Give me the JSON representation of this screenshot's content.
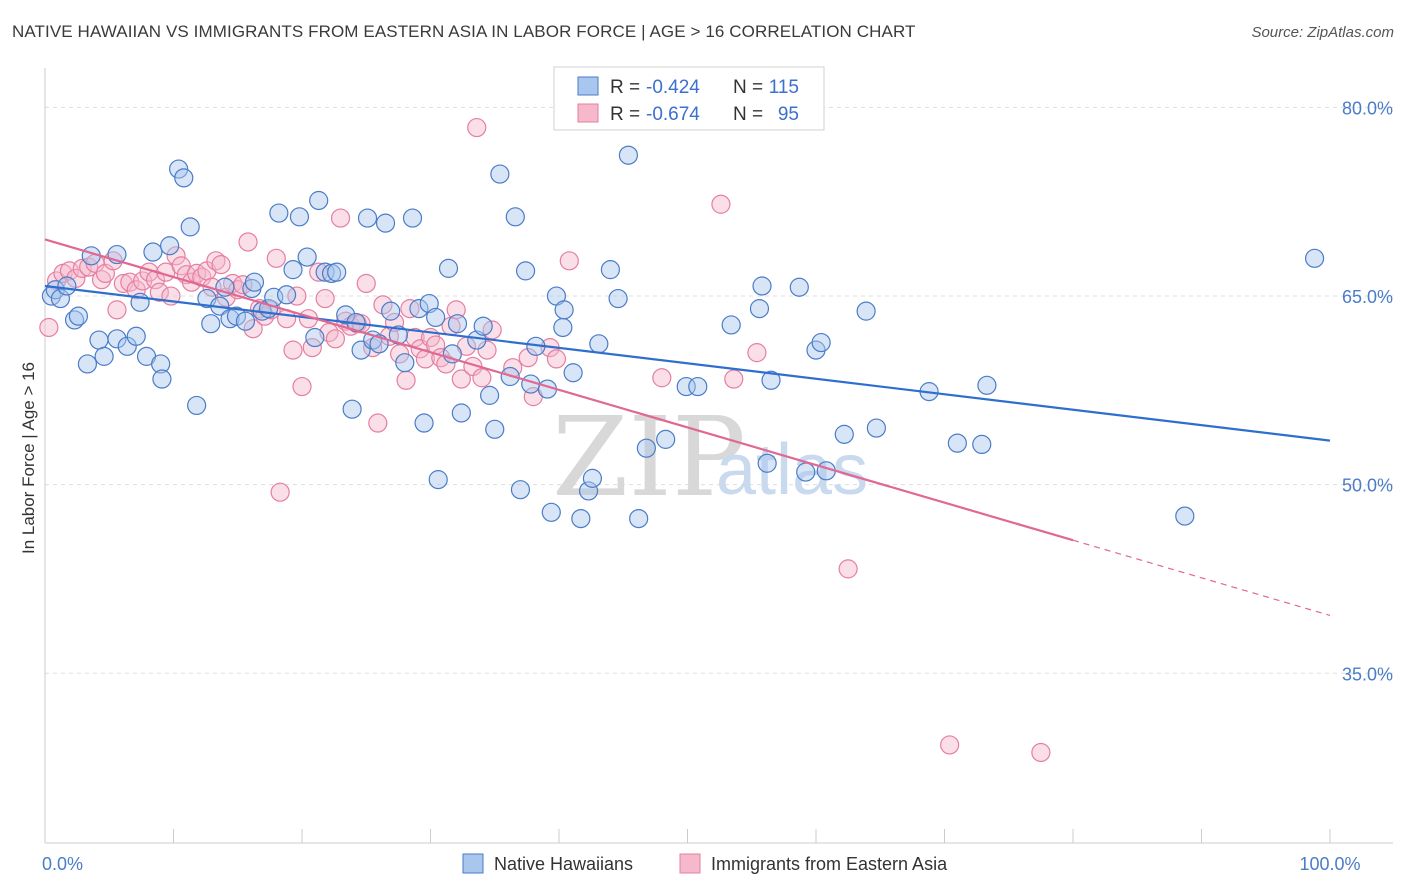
{
  "header": {
    "title": "NATIVE HAWAIIAN VS IMMIGRANTS FROM EASTERN ASIA IN LABOR FORCE | AGE > 16 CORRELATION CHART",
    "source": "Source: ZipAtlas.com"
  },
  "watermark": {
    "zip": "ZIP",
    "atlas": "atlas"
  },
  "colors": {
    "blue": "#4a7cc7",
    "blue_fill": "#a9c6ee",
    "blue_line": "#2e6fce",
    "pink": "#e57fa0",
    "pink_fill": "#f5b9cb",
    "pink_line": "#e06892"
  },
  "stats_box": {
    "rows": [
      {
        "r_label": "R =",
        "r_value": "-0.424",
        "n_label": "N =",
        "n_value": "115"
      },
      {
        "r_label": "R =",
        "r_value": "-0.674",
        "n_label": "N =",
        "n_value": "95"
      }
    ]
  },
  "chart_data": {
    "type": "scatter",
    "title": "NATIVE HAWAIIAN VS IMMIGRANTS FROM EASTERN ASIA IN LABOR FORCE | AGE > 16 CORRELATION CHART",
    "xlabel": "",
    "ylabel": "In Labor Force | Age > 16",
    "xlim": [
      0,
      100
    ],
    "ylim": [
      21.5,
      82.5
    ],
    "x_tick_labels": [
      {
        "value": 0,
        "label": "0.0%"
      },
      {
        "value": 100,
        "label": "100.0%"
      }
    ],
    "y_tick_labels": [
      {
        "value": 80,
        "label": "80.0%"
      },
      {
        "value": 65,
        "label": "65.0%"
      },
      {
        "value": 50,
        "label": "50.0%"
      },
      {
        "value": 35,
        "label": "35.0%"
      }
    ],
    "grid": true,
    "legend_position": "bottom-center",
    "series": [
      {
        "name": "Native Hawaiians",
        "color": "#4a7cc7",
        "trend": {
          "x": [
            0,
            100
          ],
          "y": [
            65.8,
            53.5
          ],
          "dashed_from": null
        },
        "points": [
          [
            0.5,
            65.0
          ],
          [
            0.8,
            65.5
          ],
          [
            1.2,
            64.8
          ],
          [
            1.7,
            65.8
          ],
          [
            2.3,
            63.1
          ],
          [
            2.6,
            63.4
          ],
          [
            3.3,
            59.6
          ],
          [
            3.6,
            68.2
          ],
          [
            4.2,
            61.5
          ],
          [
            4.6,
            60.2
          ],
          [
            5.6,
            61.6
          ],
          [
            5.6,
            68.3
          ],
          [
            6.4,
            61.0
          ],
          [
            7.1,
            61.8
          ],
          [
            7.4,
            64.5
          ],
          [
            7.9,
            60.2
          ],
          [
            8.4,
            68.5
          ],
          [
            9.0,
            59.6
          ],
          [
            9.1,
            58.4
          ],
          [
            9.7,
            69.0
          ],
          [
            10.4,
            75.1
          ],
          [
            10.8,
            74.4
          ],
          [
            11.3,
            70.5
          ],
          [
            11.8,
            56.3
          ],
          [
            12.6,
            64.8
          ],
          [
            12.9,
            62.8
          ],
          [
            13.6,
            64.2
          ],
          [
            14.0,
            65.7
          ],
          [
            14.4,
            63.2
          ],
          [
            14.9,
            63.4
          ],
          [
            15.6,
            63.0
          ],
          [
            16.1,
            65.6
          ],
          [
            16.3,
            66.1
          ],
          [
            16.9,
            63.8
          ],
          [
            17.4,
            64.0
          ],
          [
            17.8,
            64.9
          ],
          [
            18.2,
            71.6
          ],
          [
            18.8,
            65.1
          ],
          [
            19.3,
            67.1
          ],
          [
            19.8,
            71.3
          ],
          [
            20.4,
            68.1
          ],
          [
            21.0,
            61.7
          ],
          [
            21.3,
            72.6
          ],
          [
            21.8,
            66.9
          ],
          [
            22.3,
            66.8
          ],
          [
            22.7,
            66.9
          ],
          [
            23.4,
            63.5
          ],
          [
            23.9,
            56.0
          ],
          [
            24.2,
            62.9
          ],
          [
            24.6,
            60.7
          ],
          [
            25.1,
            71.2
          ],
          [
            25.5,
            61.5
          ],
          [
            26.0,
            61.2
          ],
          [
            26.5,
            70.8
          ],
          [
            26.9,
            63.8
          ],
          [
            27.5,
            61.9
          ],
          [
            28.0,
            59.7
          ],
          [
            28.6,
            71.2
          ],
          [
            29.1,
            64.0
          ],
          [
            29.5,
            54.9
          ],
          [
            29.9,
            64.4
          ],
          [
            30.4,
            63.3
          ],
          [
            30.6,
            50.4
          ],
          [
            31.4,
            67.2
          ],
          [
            31.7,
            60.4
          ],
          [
            32.1,
            62.8
          ],
          [
            32.4,
            55.7
          ],
          [
            33.6,
            61.5
          ],
          [
            34.1,
            62.6
          ],
          [
            34.6,
            57.1
          ],
          [
            35.0,
            54.4
          ],
          [
            35.4,
            74.7
          ],
          [
            36.2,
            58.6
          ],
          [
            36.6,
            71.3
          ],
          [
            37.0,
            49.6
          ],
          [
            37.4,
            67.0
          ],
          [
            37.8,
            58.0
          ],
          [
            38.2,
            61.0
          ],
          [
            39.1,
            57.6
          ],
          [
            39.4,
            47.8
          ],
          [
            39.8,
            65.0
          ],
          [
            40.3,
            62.5
          ],
          [
            40.4,
            63.9
          ],
          [
            41.1,
            58.9
          ],
          [
            41.7,
            47.3
          ],
          [
            42.3,
            49.5
          ],
          [
            42.6,
            50.5
          ],
          [
            43.1,
            61.2
          ],
          [
            44.0,
            67.1
          ],
          [
            44.6,
            64.8
          ],
          [
            45.4,
            76.2
          ],
          [
            46.2,
            47.3
          ],
          [
            46.8,
            52.9
          ],
          [
            48.3,
            53.6
          ],
          [
            49.9,
            57.8
          ],
          [
            50.8,
            57.8
          ],
          [
            53.4,
            62.7
          ],
          [
            55.6,
            64.0
          ],
          [
            55.8,
            65.8
          ],
          [
            56.2,
            51.7
          ],
          [
            56.5,
            58.3
          ],
          [
            58.7,
            65.7
          ],
          [
            59.2,
            51.0
          ],
          [
            60.0,
            60.7
          ],
          [
            60.4,
            61.3
          ],
          [
            60.8,
            51.1
          ],
          [
            62.2,
            54.0
          ],
          [
            63.9,
            63.8
          ],
          [
            64.7,
            54.5
          ],
          [
            68.8,
            57.4
          ],
          [
            71.0,
            53.3
          ],
          [
            72.9,
            53.2
          ],
          [
            73.3,
            57.9
          ],
          [
            88.7,
            47.5
          ],
          [
            98.8,
            68.0
          ]
        ]
      },
      {
        "name": "Immigrants from Eastern Asia",
        "color": "#e57fa0",
        "trend": {
          "x": [
            0,
            100
          ],
          "y": [
            69.5,
            39.6
          ],
          "dashed_from": 80
        },
        "points": [
          [
            0.3,
            62.5
          ],
          [
            0.9,
            66.2
          ],
          [
            1.4,
            66.8
          ],
          [
            1.9,
            67.0
          ],
          [
            2.4,
            66.4
          ],
          [
            2.9,
            67.2
          ],
          [
            3.4,
            67.3
          ],
          [
            3.9,
            67.6
          ],
          [
            4.4,
            66.3
          ],
          [
            4.7,
            66.8
          ],
          [
            5.3,
            67.8
          ],
          [
            5.6,
            63.9
          ],
          [
            6.1,
            66.0
          ],
          [
            6.6,
            66.1
          ],
          [
            7.1,
            65.5
          ],
          [
            7.6,
            66.2
          ],
          [
            8.1,
            66.9
          ],
          [
            8.6,
            66.3
          ],
          [
            8.9,
            65.3
          ],
          [
            9.4,
            66.9
          ],
          [
            9.8,
            65.0
          ],
          [
            10.2,
            68.2
          ],
          [
            10.6,
            67.4
          ],
          [
            11.0,
            66.7
          ],
          [
            11.4,
            66.1
          ],
          [
            11.8,
            66.8
          ],
          [
            12.2,
            66.5
          ],
          [
            12.6,
            67.0
          ],
          [
            13.0,
            65.7
          ],
          [
            13.3,
            67.8
          ],
          [
            13.7,
            67.5
          ],
          [
            14.1,
            64.9
          ],
          [
            14.6,
            66.0
          ],
          [
            15.0,
            65.5
          ],
          [
            15.4,
            65.9
          ],
          [
            15.8,
            69.3
          ],
          [
            16.2,
            62.4
          ],
          [
            16.7,
            64.0
          ],
          [
            17.1,
            63.4
          ],
          [
            17.6,
            63.9
          ],
          [
            18.0,
            68.0
          ],
          [
            18.3,
            49.4
          ],
          [
            18.8,
            63.2
          ],
          [
            19.3,
            60.7
          ],
          [
            19.6,
            65.0
          ],
          [
            20.0,
            57.8
          ],
          [
            20.5,
            63.2
          ],
          [
            20.8,
            60.9
          ],
          [
            21.3,
            66.9
          ],
          [
            21.8,
            64.8
          ],
          [
            22.1,
            62.1
          ],
          [
            22.6,
            61.6
          ],
          [
            23.0,
            71.2
          ],
          [
            23.4,
            63.0
          ],
          [
            23.8,
            62.6
          ],
          [
            24.3,
            62.8
          ],
          [
            24.6,
            62.8
          ],
          [
            25.0,
            66.0
          ],
          [
            25.5,
            60.9
          ],
          [
            25.9,
            54.9
          ],
          [
            26.3,
            64.3
          ],
          [
            26.8,
            61.8
          ],
          [
            27.2,
            62.9
          ],
          [
            27.6,
            60.4
          ],
          [
            28.1,
            58.3
          ],
          [
            28.4,
            64.0
          ],
          [
            28.8,
            61.7
          ],
          [
            29.2,
            60.8
          ],
          [
            29.6,
            60.0
          ],
          [
            30.0,
            61.7
          ],
          [
            30.4,
            61.1
          ],
          [
            30.8,
            60.1
          ],
          [
            31.2,
            59.6
          ],
          [
            31.6,
            62.6
          ],
          [
            32.0,
            63.9
          ],
          [
            32.4,
            58.4
          ],
          [
            32.8,
            61.0
          ],
          [
            33.3,
            59.4
          ],
          [
            33.6,
            78.4
          ],
          [
            34.0,
            58.5
          ],
          [
            34.4,
            60.7
          ],
          [
            34.8,
            62.3
          ],
          [
            36.4,
            59.3
          ],
          [
            37.6,
            60.1
          ],
          [
            38.0,
            57.0
          ],
          [
            39.3,
            60.9
          ],
          [
            39.8,
            60.0
          ],
          [
            40.8,
            67.8
          ],
          [
            48.0,
            58.5
          ],
          [
            52.6,
            72.3
          ],
          [
            53.6,
            58.4
          ],
          [
            55.4,
            60.5
          ],
          [
            62.5,
            43.3
          ],
          [
            70.4,
            29.3
          ],
          [
            77.5,
            28.7
          ]
        ]
      }
    ]
  },
  "legend": {
    "items": [
      {
        "label": "Native Hawaiians"
      },
      {
        "label": "Immigrants from Eastern Asia"
      }
    ]
  }
}
